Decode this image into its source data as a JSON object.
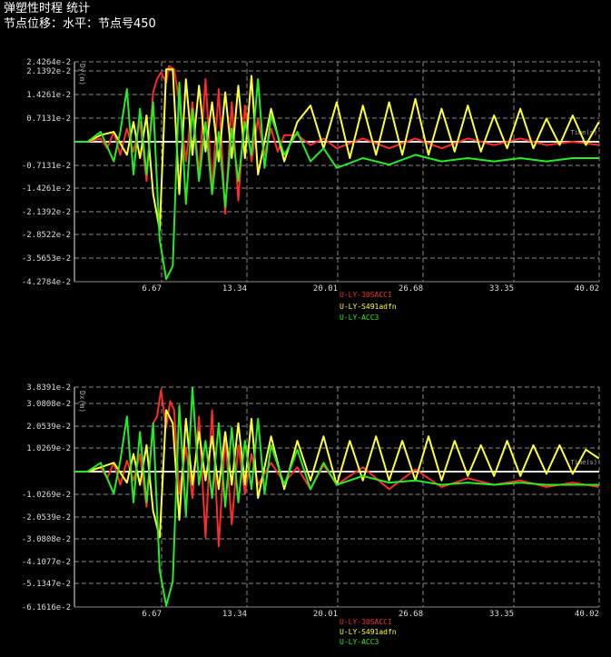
{
  "header": {
    "title": "弹塑性时程 统计",
    "subtitle": "节点位移：水平：节点号450"
  },
  "colors": {
    "red": "#ff2a2a",
    "yellow": "#ffff33",
    "green": "#22ee22",
    "grid": "#8a8a8a",
    "zero": "#e6e6e6"
  },
  "chart_data": [
    {
      "type": "line",
      "ylabel": "Dy(m)",
      "xlabel": "Time(s)",
      "x_ticks": [
        "6.67",
        "13.34",
        "20.01",
        "26.68",
        "33.35",
        "40.02"
      ],
      "y_ticks": [
        "2.4264e-2",
        "2.1392e-2",
        "1.4261e-2",
        "0.7131e-2",
        "-0.7131e-2",
        "-1.4261e-2",
        "-2.1392e-2",
        "-2.8522e-2",
        "-3.5653e-2",
        "-4.2784e-2"
      ],
      "xlim": [
        0,
        40.02
      ],
      "ylim": [
        -0.042784,
        0.024264
      ],
      "legend": [
        "U-LY-30SACC1",
        "U-LY-S491adfn",
        "U-LY-ACC3"
      ],
      "series": [
        {
          "name": "U-LY-30SACC1",
          "color": "red",
          "x": [
            0,
            1,
            2,
            2.5,
            3,
            3.5,
            4,
            4.5,
            5,
            5.5,
            6,
            6.3,
            6.6,
            7,
            7.2,
            7.6,
            8,
            8.5,
            9,
            9.5,
            10,
            10.5,
            11,
            11.5,
            12,
            12.5,
            13,
            13.5,
            14,
            14.5,
            15,
            15.5,
            16,
            17,
            18,
            19,
            20,
            22,
            24,
            26,
            28,
            30,
            32,
            34,
            36,
            38,
            40
          ],
          "y": [
            0,
            0,
            0.001,
            -0.002,
            0.003,
            -0.004,
            0.004,
            -0.003,
            0.006,
            -0.012,
            0.015,
            0.019,
            0.021,
            0.018,
            0.023,
            0.022,
            0.012,
            -0.006,
            0.012,
            -0.01,
            0.019,
            -0.015,
            0.016,
            -0.022,
            0.012,
            -0.018,
            0.011,
            -0.006,
            0.007,
            -0.004,
            0.004,
            -0.003,
            0.002,
            0.002,
            -0.001,
            0.001,
            -0.002,
            0.001,
            -0.002,
            0.001,
            -0.002,
            0.001,
            -0.001,
            0.001,
            -0.001,
            0.0,
            -0.001
          ]
        },
        {
          "name": "U-LY-S491adfn",
          "color": "yellow",
          "x": [
            0,
            1,
            2,
            3,
            4,
            4.5,
            5,
            5.5,
            6,
            6.5,
            7,
            7.5,
            8,
            8.5,
            9,
            9.5,
            10,
            10.5,
            11,
            11.5,
            12,
            12.5,
            13,
            13.5,
            14,
            15,
            16,
            17,
            18,
            19,
            20,
            21,
            22,
            23,
            24,
            25,
            26,
            27,
            28,
            29,
            30,
            31,
            32,
            33,
            34,
            35,
            36,
            37,
            38,
            39,
            40
          ],
          "y": [
            0,
            0,
            0.002,
            0.003,
            -0.004,
            0.006,
            -0.005,
            0.008,
            -0.016,
            -0.027,
            0.022,
            0.022,
            -0.016,
            0.019,
            -0.004,
            0.017,
            -0.003,
            0.012,
            -0.006,
            0.015,
            -0.005,
            0.017,
            -0.005,
            0.02,
            -0.01,
            0.01,
            -0.006,
            0.006,
            0.011,
            -0.002,
            0.012,
            -0.005,
            0.011,
            -0.004,
            0.012,
            -0.004,
            0.013,
            -0.004,
            0.01,
            -0.003,
            0.011,
            -0.003,
            0.008,
            -0.002,
            0.01,
            -0.002,
            0.007,
            -0.001,
            0.008,
            -0.001,
            0.006
          ]
        },
        {
          "name": "U-LY-ACC3",
          "color": "green",
          "x": [
            0,
            1,
            2,
            3,
            3.5,
            4,
            4.5,
            5,
            5.5,
            6,
            6.5,
            7,
            7.5,
            8,
            8.5,
            9,
            9.5,
            10,
            10.5,
            11,
            11.5,
            12,
            12.5,
            13,
            13.5,
            14,
            14.5,
            15,
            16,
            17,
            18,
            19,
            20,
            22,
            24,
            26,
            28,
            30,
            32,
            34,
            36,
            38,
            40
          ],
          "y": [
            0,
            0,
            0.003,
            -0.006,
            0.003,
            0.016,
            -0.01,
            0.01,
            -0.01,
            0.012,
            -0.03,
            -0.042,
            -0.038,
            0.018,
            -0.019,
            0.01,
            -0.012,
            0.006,
            -0.016,
            0.003,
            -0.02,
            0.004,
            -0.012,
            0.006,
            -0.004,
            0.019,
            -0.008,
            0.008,
            -0.004,
            0.003,
            -0.006,
            -0.002,
            -0.008,
            -0.005,
            -0.007,
            -0.004,
            -0.006,
            -0.005,
            -0.006,
            -0.005,
            -0.006,
            -0.005,
            -0.005
          ]
        }
      ]
    },
    {
      "type": "line",
      "ylabel": "Dx(m)",
      "xlabel": "Time(s)",
      "x_ticks": [
        "6.67",
        "13.34",
        "20.01",
        "26.68",
        "33.35",
        "40.02"
      ],
      "y_ticks": [
        "3.8391e-2",
        "3.0808e-2",
        "2.0539e-2",
        "1.0269e-2",
        "-1.0269e-2",
        "-2.0539e-2",
        "-3.0808e-2",
        "-4.1077e-2",
        "-5.1347e-2",
        "-6.1616e-2"
      ],
      "xlim": [
        0,
        40.02
      ],
      "ylim": [
        -0.061616,
        0.038391
      ],
      "legend": [
        "U-LY-30SACC1",
        "U-LY-S491adfn",
        "U-LY-ACC3"
      ],
      "series": [
        {
          "name": "U-LY-30SACC1",
          "color": "red",
          "x": [
            0,
            1,
            2,
            2.5,
            3,
            3.5,
            4,
            4.5,
            5,
            5.5,
            6,
            6.3,
            6.6,
            7,
            7.3,
            7.6,
            8,
            8.5,
            9,
            9.5,
            10,
            10.5,
            11,
            11.5,
            12,
            12.5,
            13,
            13.5,
            14,
            15,
            16,
            17,
            18,
            19,
            20,
            22,
            24,
            26,
            28,
            30,
            32,
            34,
            36,
            38,
            40
          ],
          "y": [
            0,
            0,
            0.002,
            -0.003,
            0.004,
            -0.006,
            0.005,
            -0.004,
            0.008,
            -0.016,
            0.022,
            0.025,
            0.037,
            0.02,
            0.032,
            0.028,
            -0.01,
            0.011,
            -0.012,
            0.025,
            -0.03,
            0.028,
            -0.034,
            0.016,
            -0.024,
            0.012,
            -0.01,
            0.008,
            -0.006,
            0.004,
            -0.005,
            0.002,
            -0.008,
            0.003,
            -0.006,
            0.002,
            -0.008,
            0.001,
            -0.007,
            -0.003,
            -0.006,
            -0.004,
            -0.007,
            -0.005,
            -0.007
          ]
        },
        {
          "name": "U-LY-S491adfn",
          "color": "yellow",
          "x": [
            0,
            1,
            2,
            3,
            4,
            4.5,
            5,
            5.5,
            6,
            6.5,
            7,
            7.5,
            8,
            8.5,
            9,
            9.5,
            10,
            10.5,
            11,
            11.5,
            12,
            12.5,
            13,
            13.5,
            14,
            15,
            16,
            17,
            18,
            19,
            20,
            21,
            22,
            23,
            24,
            25,
            26,
            27,
            28,
            29,
            30,
            31,
            32,
            33,
            34,
            35,
            36,
            37,
            38,
            39,
            40
          ],
          "y": [
            0,
            0,
            0.002,
            0.004,
            -0.005,
            0.008,
            -0.006,
            0.012,
            -0.018,
            -0.03,
            0.028,
            0.022,
            -0.022,
            0.024,
            -0.006,
            0.018,
            -0.004,
            0.016,
            -0.008,
            0.018,
            -0.006,
            0.022,
            -0.006,
            0.024,
            -0.012,
            0.016,
            -0.008,
            0.014,
            -0.004,
            0.016,
            -0.006,
            0.014,
            -0.004,
            0.016,
            -0.004,
            0.014,
            -0.004,
            0.016,
            -0.004,
            0.014,
            -0.002,
            0.012,
            -0.002,
            0.014,
            -0.002,
            0.012,
            -0.001,
            0.012,
            -0.001,
            0.01,
            0.006
          ]
        },
        {
          "name": "U-LY-ACC3",
          "color": "green",
          "x": [
            0,
            1,
            2,
            3,
            3.5,
            4,
            4.5,
            5,
            5.5,
            6,
            6.5,
            7,
            7.5,
            8,
            8.5,
            9,
            9.5,
            10,
            10.5,
            11,
            11.5,
            12,
            12.5,
            13,
            13.5,
            14,
            14.5,
            15,
            16,
            17,
            18,
            19,
            20,
            22,
            24,
            26,
            28,
            30,
            32,
            34,
            36,
            38,
            40
          ],
          "y": [
            0,
            0,
            0.004,
            -0.01,
            0.005,
            0.025,
            -0.014,
            0.018,
            -0.014,
            0.022,
            -0.045,
            -0.061,
            -0.05,
            0.03,
            -0.02,
            0.038,
            -0.006,
            0.014,
            -0.012,
            0.022,
            -0.016,
            0.02,
            -0.014,
            0.014,
            -0.008,
            0.024,
            -0.01,
            0.012,
            -0.006,
            0.01,
            -0.008,
            0.004,
            -0.006,
            -0.002,
            -0.005,
            -0.004,
            -0.006,
            -0.005,
            -0.006,
            -0.005,
            -0.006,
            -0.006,
            -0.006
          ]
        }
      ]
    }
  ]
}
